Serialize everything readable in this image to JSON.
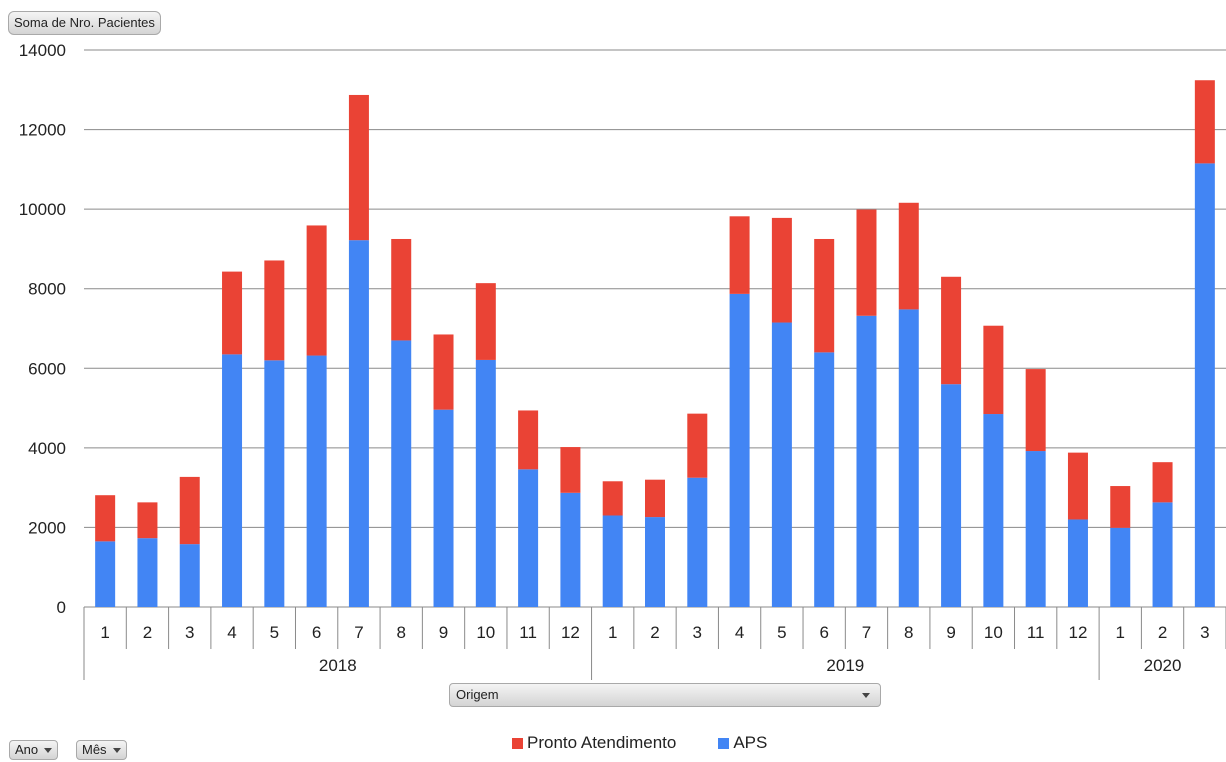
{
  "measure_button": "Soma de Nro. Pacientes",
  "row_field_button": "Origem",
  "axis_field_buttons": [
    "Ano",
    "Mês"
  ],
  "chart_data": {
    "type": "bar",
    "stacked": true,
    "ylim": [
      0,
      14000
    ],
    "y_ticks": [
      "0",
      "2000",
      "4000",
      "6000",
      "8000",
      "10000",
      "12000",
      "14000"
    ],
    "grid": true,
    "legend_position": "bottom",
    "groups": [
      {
        "label": "2018",
        "months": [
          "1",
          "2",
          "3",
          "4",
          "5",
          "6",
          "7",
          "8",
          "9",
          "10",
          "11",
          "12"
        ]
      },
      {
        "label": "2019",
        "months": [
          "1",
          "2",
          "3",
          "4",
          "5",
          "6",
          "7",
          "8",
          "9",
          "10",
          "11",
          "12"
        ]
      },
      {
        "label": "2020",
        "months": [
          "1",
          "2",
          "3"
        ]
      }
    ],
    "series": [
      {
        "name": "APS",
        "color": "#4285f4",
        "values": [
          1650,
          1730,
          1580,
          6350,
          6200,
          6320,
          9220,
          6700,
          4960,
          6210,
          3460,
          2870,
          2300,
          2260,
          3250,
          7870,
          7150,
          6400,
          7320,
          7480,
          5600,
          4850,
          3920,
          2200,
          1990,
          2630,
          11150
        ]
      },
      {
        "name": "Pronto Atendimento",
        "color": "#ea4335",
        "values": [
          1160,
          900,
          1690,
          2080,
          2510,
          3270,
          3650,
          2550,
          1890,
          1930,
          1480,
          1150,
          860,
          940,
          1610,
          1950,
          2630,
          2850,
          2670,
          2680,
          2700,
          2220,
          2060,
          1680,
          1050,
          1010,
          2090
        ]
      }
    ],
    "legend": [
      "Pronto Atendimento",
      "APS"
    ]
  }
}
